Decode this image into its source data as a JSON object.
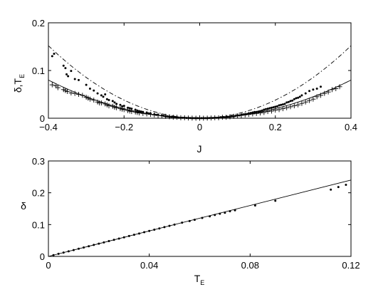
{
  "chart_data": [
    {
      "type": "scatter",
      "xlabel": "J",
      "ylabel_main": "δ,T",
      "ylabel_sub": "E",
      "xlim": [
        -0.4,
        0.4
      ],
      "ylim": [
        0,
        0.2
      ],
      "xticks": [
        -0.4,
        -0.2,
        0,
        0.2,
        0.4
      ],
      "xtick_labels": [
        "−0.4",
        "−0.2",
        "0",
        "0.2",
        "0.4"
      ],
      "yticks": [
        0,
        0.1,
        0.2
      ],
      "ytick_labels": [
        "0",
        "0.1",
        "0.2"
      ],
      "series": [
        {
          "marker": "dot",
          "points": [
            [
              -0.39,
              0.13
            ],
            [
              -0.385,
              0.135
            ],
            [
              -0.36,
              0.11
            ],
            [
              -0.355,
              0.105
            ],
            [
              -0.352,
              0.092
            ],
            [
              -0.348,
              0.088
            ],
            [
              -0.34,
              0.099
            ],
            [
              -0.33,
              0.082
            ],
            [
              -0.32,
              0.08
            ],
            [
              -0.3,
              0.07
            ],
            [
              -0.29,
              0.062
            ],
            [
              -0.28,
              0.058
            ],
            [
              -0.27,
              0.052
            ],
            [
              -0.26,
              0.048
            ],
            [
              -0.255,
              0.045
            ],
            [
              -0.25,
              0.05
            ],
            [
              -0.245,
              0.04
            ],
            [
              -0.24,
              0.038
            ],
            [
              -0.23,
              0.036
            ],
            [
              -0.225,
              0.033
            ],
            [
              -0.22,
              0.03
            ],
            [
              -0.21,
              0.028
            ],
            [
              -0.205,
              0.025
            ],
            [
              -0.2,
              0.026
            ],
            [
              -0.19,
              0.022
            ],
            [
              -0.185,
              0.021
            ],
            [
              -0.18,
              0.02
            ],
            [
              -0.17,
              0.018
            ],
            [
              -0.165,
              0.016
            ],
            [
              -0.16,
              0.015
            ],
            [
              -0.155,
              0.014
            ],
            [
              -0.15,
              0.013
            ],
            [
              -0.14,
              0.012
            ],
            [
              -0.135,
              0.01
            ],
            [
              -0.13,
              0.01
            ],
            [
              -0.12,
              0.008
            ],
            [
              -0.115,
              0.007
            ],
            [
              -0.11,
              0.007
            ],
            [
              -0.1,
              0.006
            ],
            [
              -0.095,
              0.005
            ],
            [
              -0.09,
              0.004
            ],
            [
              -0.085,
              0.004
            ],
            [
              -0.08,
              0.003
            ],
            [
              -0.075,
              0.003
            ],
            [
              -0.07,
              0.003
            ],
            [
              -0.065,
              0.002
            ],
            [
              -0.06,
              0.002
            ],
            [
              -0.055,
              0.001
            ],
            [
              -0.05,
              0.001
            ],
            [
              -0.045,
              0.001
            ],
            [
              -0.04,
              0.001
            ],
            [
              -0.035,
              0.0005
            ],
            [
              -0.03,
              0.0005
            ],
            [
              -0.025,
              0.0003
            ],
            [
              -0.02,
              0.0002
            ],
            [
              -0.015,
              0.0002
            ],
            [
              -0.01,
              0.0001
            ],
            [
              -0.005,
              0.0001
            ],
            [
              0.0,
              0.0
            ],
            [
              0.005,
              0.0001
            ],
            [
              0.01,
              0.0001
            ],
            [
              0.015,
              0.0002
            ],
            [
              0.02,
              0.0002
            ],
            [
              0.025,
              0.0003
            ],
            [
              0.03,
              0.0005
            ],
            [
              0.035,
              0.0006
            ],
            [
              0.04,
              0.001
            ],
            [
              0.045,
              0.001
            ],
            [
              0.05,
              0.001
            ],
            [
              0.055,
              0.002
            ],
            [
              0.06,
              0.002
            ],
            [
              0.065,
              0.002
            ],
            [
              0.07,
              0.003
            ],
            [
              0.075,
              0.003
            ],
            [
              0.08,
              0.003
            ],
            [
              0.085,
              0.004
            ],
            [
              0.09,
              0.004
            ],
            [
              0.095,
              0.005
            ],
            [
              0.1,
              0.006
            ],
            [
              0.105,
              0.006
            ],
            [
              0.11,
              0.007
            ],
            [
              0.115,
              0.008
            ],
            [
              0.12,
              0.008
            ],
            [
              0.125,
              0.009
            ],
            [
              0.13,
              0.01
            ],
            [
              0.135,
              0.011
            ],
            [
              0.14,
              0.012
            ],
            [
              0.145,
              0.013
            ],
            [
              0.15,
              0.013
            ],
            [
              0.155,
              0.014
            ],
            [
              0.16,
              0.015
            ],
            [
              0.165,
              0.016
            ],
            [
              0.17,
              0.018
            ],
            [
              0.175,
              0.019
            ],
            [
              0.18,
              0.02
            ],
            [
              0.185,
              0.021
            ],
            [
              0.19,
              0.022
            ],
            [
              0.195,
              0.023
            ],
            [
              0.2,
              0.024
            ],
            [
              0.205,
              0.025
            ],
            [
              0.21,
              0.027
            ],
            [
              0.215,
              0.028
            ],
            [
              0.22,
              0.029
            ],
            [
              0.225,
              0.03
            ],
            [
              0.23,
              0.033
            ],
            [
              0.235,
              0.034
            ],
            [
              0.24,
              0.036
            ],
            [
              0.245,
              0.037
            ],
            [
              0.25,
              0.04
            ],
            [
              0.255,
              0.042
            ],
            [
              0.26,
              0.043
            ],
            [
              0.265,
              0.045
            ],
            [
              0.27,
              0.048
            ],
            [
              0.28,
              0.052
            ],
            [
              0.29,
              0.057
            ],
            [
              0.3,
              0.06
            ],
            [
              0.31,
              0.062
            ],
            [
              0.32,
              0.066
            ]
          ]
        },
        {
          "marker": "plus",
          "points": [
            [
              -0.39,
              0.07
            ],
            [
              -0.38,
              0.068
            ],
            [
              -0.375,
              0.064
            ],
            [
              -0.36,
              0.06
            ],
            [
              -0.355,
              0.058
            ],
            [
              -0.35,
              0.056
            ],
            [
              -0.34,
              0.053
            ],
            [
              -0.33,
              0.052
            ],
            [
              -0.32,
              0.05
            ],
            [
              -0.31,
              0.048
            ],
            [
              -0.3,
              0.044
            ],
            [
              -0.295,
              0.042
            ],
            [
              -0.29,
              0.04
            ],
            [
              -0.28,
              0.038
            ],
            [
              -0.27,
              0.034
            ],
            [
              -0.265,
              0.032
            ],
            [
              -0.26,
              0.032
            ],
            [
              -0.25,
              0.03
            ],
            [
              -0.245,
              0.028
            ],
            [
              -0.24,
              0.026
            ],
            [
              -0.23,
              0.025
            ],
            [
              -0.225,
              0.023
            ],
            [
              -0.22,
              0.022
            ],
            [
              -0.21,
              0.02
            ],
            [
              -0.205,
              0.019
            ],
            [
              -0.2,
              0.018
            ],
            [
              -0.19,
              0.016
            ],
            [
              -0.185,
              0.015
            ],
            [
              -0.18,
              0.014
            ],
            [
              -0.17,
              0.013
            ],
            [
              -0.165,
              0.012
            ],
            [
              -0.16,
              0.011
            ],
            [
              -0.15,
              0.01
            ],
            [
              -0.14,
              0.009
            ],
            [
              -0.13,
              0.008
            ],
            [
              -0.12,
              0.007
            ],
            [
              -0.11,
              0.006
            ],
            [
              -0.1,
              0.005
            ],
            [
              -0.09,
              0.004
            ],
            [
              -0.08,
              0.003
            ],
            [
              -0.07,
              0.002
            ],
            [
              -0.06,
              0.002
            ],
            [
              -0.05,
              0.001
            ],
            [
              -0.04,
              0.001
            ],
            [
              -0.03,
              0.0005
            ],
            [
              -0.02,
              0.0003
            ],
            [
              -0.01,
              0.0001
            ],
            [
              0.0,
              0.0
            ],
            [
              0.01,
              0.0001
            ],
            [
              0.02,
              0.0003
            ],
            [
              0.03,
              0.0005
            ],
            [
              0.04,
              0.001
            ],
            [
              0.05,
              0.001
            ],
            [
              0.06,
              0.002
            ],
            [
              0.07,
              0.002
            ],
            [
              0.08,
              0.003
            ],
            [
              0.09,
              0.004
            ],
            [
              0.1,
              0.005
            ],
            [
              0.11,
              0.006
            ],
            [
              0.12,
              0.007
            ],
            [
              0.13,
              0.008
            ],
            [
              0.14,
              0.009
            ],
            [
              0.15,
              0.01
            ],
            [
              0.16,
              0.011
            ],
            [
              0.17,
              0.012
            ],
            [
              0.18,
              0.014
            ],
            [
              0.19,
              0.015
            ],
            [
              0.2,
              0.017
            ],
            [
              0.21,
              0.018
            ],
            [
              0.22,
              0.02
            ],
            [
              0.23,
              0.022
            ],
            [
              0.24,
              0.024
            ],
            [
              0.25,
              0.026
            ],
            [
              0.26,
              0.028
            ],
            [
              0.27,
              0.031
            ],
            [
              0.28,
              0.034
            ],
            [
              0.29,
              0.037
            ],
            [
              0.3,
              0.04
            ],
            [
              0.31,
              0.045
            ],
            [
              0.32,
              0.048
            ],
            [
              0.33,
              0.052
            ],
            [
              0.34,
              0.055
            ],
            [
              0.35,
              0.06
            ],
            [
              0.36,
              0.062
            ],
            [
              0.37,
              0.066
            ]
          ]
        },
        {
          "line": "solid",
          "curve_coefficient": 0.5
        },
        {
          "line": "dash-dot",
          "curve_coefficient": 0.95
        }
      ]
    },
    {
      "type": "scatter",
      "xlabel_main": "T",
      "xlabel_sub": "E",
      "ylabel": "δ",
      "xlim": [
        0,
        0.12
      ],
      "ylim": [
        0,
        0.3
      ],
      "xticks": [
        0,
        0.04,
        0.08,
        0.12
      ],
      "xtick_labels": [
        "0",
        "0.04",
        "0.08",
        "0.12"
      ],
      "yticks": [
        0,
        0.1,
        0.2,
        0.3
      ],
      "ytick_labels": [
        "0",
        "0.1",
        "0.2",
        "0.3"
      ],
      "series": [
        {
          "marker": "dot",
          "points": [
            [
              0.002,
              0.004
            ],
            [
              0.004,
              0.008
            ],
            [
              0.006,
              0.012
            ],
            [
              0.008,
              0.016
            ],
            [
              0.01,
              0.02
            ],
            [
              0.012,
              0.024
            ],
            [
              0.014,
              0.028
            ],
            [
              0.016,
              0.032
            ],
            [
              0.018,
              0.036
            ],
            [
              0.02,
              0.04
            ],
            [
              0.022,
              0.044
            ],
            [
              0.024,
              0.048
            ],
            [
              0.026,
              0.052
            ],
            [
              0.028,
              0.056
            ],
            [
              0.03,
              0.06
            ],
            [
              0.032,
              0.064
            ],
            [
              0.034,
              0.068
            ],
            [
              0.036,
              0.072
            ],
            [
              0.038,
              0.076
            ],
            [
              0.04,
              0.08
            ],
            [
              0.042,
              0.084
            ],
            [
              0.044,
              0.088
            ],
            [
              0.046,
              0.092
            ],
            [
              0.048,
              0.096
            ],
            [
              0.05,
              0.1
            ],
            [
              0.053,
              0.106
            ],
            [
              0.056,
              0.111
            ],
            [
              0.058,
              0.115
            ],
            [
              0.061,
              0.121
            ],
            [
              0.064,
              0.126
            ],
            [
              0.066,
              0.13
            ],
            [
              0.068,
              0.134
            ],
            [
              0.07,
              0.137
            ],
            [
              0.072,
              0.142
            ],
            [
              0.074,
              0.145
            ],
            [
              0.082,
              0.16
            ],
            [
              0.09,
              0.175
            ],
            [
              0.112,
              0.21
            ],
            [
              0.115,
              0.218
            ],
            [
              0.118,
              0.225
            ]
          ]
        },
        {
          "line": "solid",
          "slope": 2.0
        }
      ]
    }
  ]
}
